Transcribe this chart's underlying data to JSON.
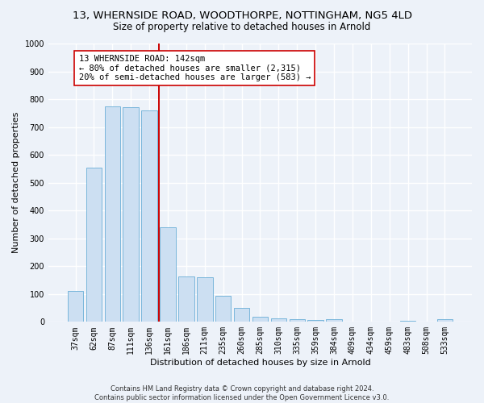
{
  "title1": "13, WHERNSIDE ROAD, WOODTHORPE, NOTTINGHAM, NG5 4LD",
  "title2": "Size of property relative to detached houses in Arnold",
  "xlabel": "Distribution of detached houses by size in Arnold",
  "ylabel": "Number of detached properties",
  "categories": [
    "37sqm",
    "62sqm",
    "87sqm",
    "111sqm",
    "136sqm",
    "161sqm",
    "186sqm",
    "211sqm",
    "235sqm",
    "260sqm",
    "285sqm",
    "310sqm",
    "335sqm",
    "359sqm",
    "384sqm",
    "409sqm",
    "434sqm",
    "459sqm",
    "483sqm",
    "508sqm",
    "533sqm"
  ],
  "values": [
    110,
    555,
    775,
    770,
    760,
    340,
    163,
    160,
    95,
    50,
    18,
    12,
    10,
    8,
    10,
    0,
    0,
    0,
    5,
    0,
    10
  ],
  "bar_color": "#ccdff2",
  "bar_edge_color": "#6aaed6",
  "vline_x": 4.5,
  "vline_color": "#cc0000",
  "annotation_text": "13 WHERNSIDE ROAD: 142sqm\n← 80% of detached houses are smaller (2,315)\n20% of semi-detached houses are larger (583) →",
  "annotation_box_color": "#ffffff",
  "annotation_box_edge": "#cc0000",
  "ylim": [
    0,
    1000
  ],
  "yticks": [
    0,
    100,
    200,
    300,
    400,
    500,
    600,
    700,
    800,
    900,
    1000
  ],
  "footer": "Contains HM Land Registry data © Crown copyright and database right 2024.\nContains public sector information licensed under the Open Government Licence v3.0.",
  "background_color": "#edf2f9",
  "grid_color": "#ffffff",
  "title1_fontsize": 9.5,
  "title2_fontsize": 8.5,
  "xlabel_fontsize": 8,
  "ylabel_fontsize": 8,
  "tick_fontsize": 7,
  "annot_fontsize": 7.5,
  "footer_fontsize": 6
}
